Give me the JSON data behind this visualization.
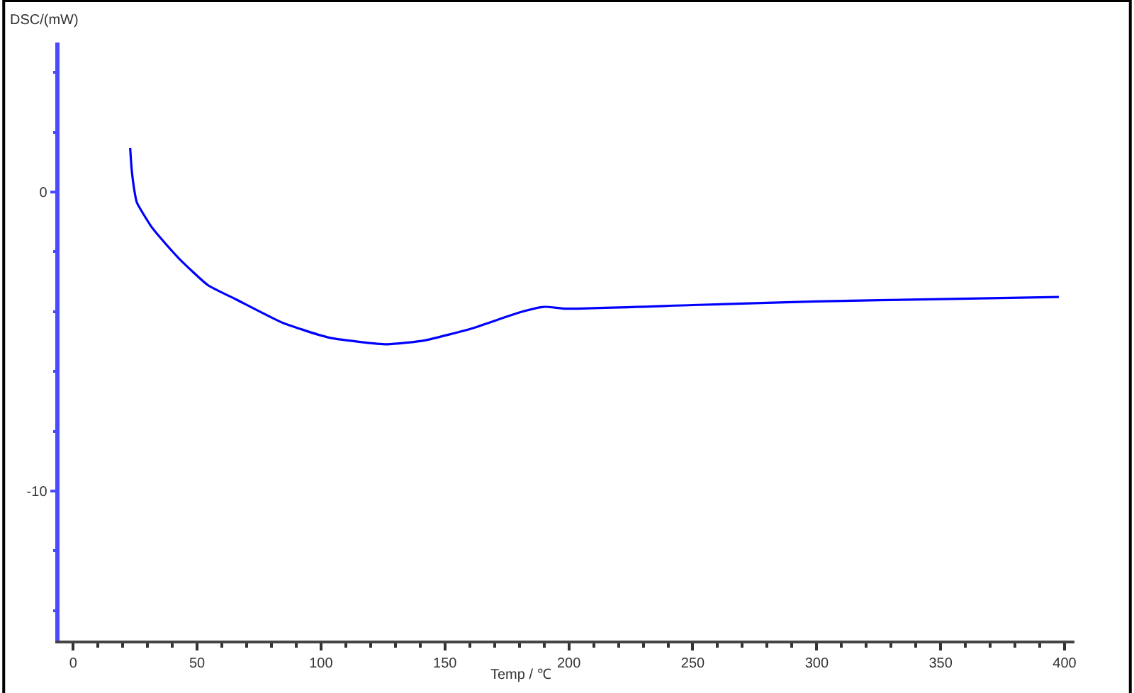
{
  "chart_data": {
    "type": "line",
    "xlabel": "Temp / ℃",
    "ylabel": "DSC/(mW)",
    "x": [
      23,
      23.6,
      24.7,
      25.7,
      31.4,
      35.2,
      42.9,
      54.3,
      65.7,
      84.7,
      103.8,
      126.6,
      141.9,
      160.9,
      180,
      190,
      199,
      250,
      300,
      350,
      397.7
    ],
    "series": [
      {
        "color": "#0000ff",
        "values": [
          1.47,
          0.76,
          0.05,
          -0.35,
          -1.14,
          -1.53,
          -2.24,
          -3.11,
          -3.59,
          -4.38,
          -4.88,
          -5.09,
          -4.96,
          -4.56,
          -4.03,
          -3.84,
          -3.9,
          -3.78,
          -3.66,
          -3.58,
          -3.51
        ]
      }
    ],
    "xlim": [
      -5.5,
      404
    ],
    "ylim": [
      -15,
      5
    ],
    "xticks": [
      0,
      {
        "value": 10,
        "label": null
      },
      {
        "value": 20,
        "label": null
      },
      {
        "value": 30,
        "label": null
      },
      {
        "value": 40,
        "label": null
      },
      50,
      {
        "value": 60,
        "label": null
      },
      {
        "value": 70,
        "label": null
      },
      {
        "value": 80,
        "label": null
      },
      {
        "value": 90,
        "label": null
      },
      100,
      {
        "value": 110,
        "label": null
      },
      {
        "value": 120,
        "label": null
      },
      {
        "value": 130,
        "label": null
      },
      {
        "value": 140,
        "label": null
      },
      150,
      {
        "value": 160,
        "label": null
      },
      {
        "value": 170,
        "label": null
      },
      {
        "value": 180,
        "label": null
      },
      {
        "value": 190,
        "label": null
      },
      200,
      {
        "value": 210,
        "label": null
      },
      {
        "value": 220,
        "label": null
      },
      {
        "value": 230,
        "label": null
      },
      {
        "value": 240,
        "label": null
      },
      250,
      {
        "value": 260,
        "label": null
      },
      {
        "value": 270,
        "label": null
      },
      {
        "value": 280,
        "label": null
      },
      {
        "value": 290,
        "label": null
      },
      300,
      {
        "value": 310,
        "label": null
      },
      {
        "value": 320,
        "label": null
      },
      {
        "value": 330,
        "label": null
      },
      {
        "value": 340,
        "label": null
      },
      350,
      {
        "value": 360,
        "label": null
      },
      {
        "value": 370,
        "label": null
      },
      {
        "value": 380,
        "label": null
      },
      {
        "value": 390,
        "label": null
      },
      400
    ],
    "yticks": [
      {
        "value": 4,
        "label": null
      },
      {
        "value": 2,
        "label": null
      },
      0,
      {
        "value": -2,
        "label": null
      },
      {
        "value": -4,
        "label": null
      },
      {
        "value": -6,
        "label": null
      },
      {
        "value": -8,
        "label": null
      },
      -10,
      {
        "value": -12,
        "label": null
      },
      {
        "value": -14,
        "label": null
      }
    ],
    "marker": "none",
    "line_style": "solid"
  }
}
